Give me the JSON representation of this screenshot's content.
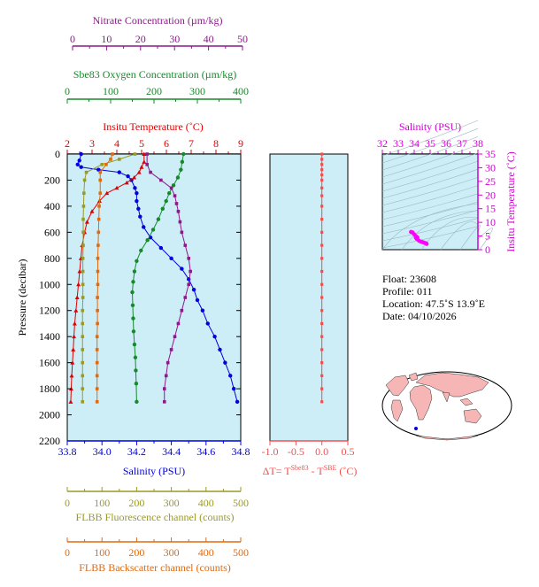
{
  "axes": {
    "nitrate": {
      "label": "Nitrate Concentration (µm/kg)",
      "color": "#8b1a89",
      "ticks": [
        "0",
        "10",
        "20",
        "30",
        "40",
        "50"
      ],
      "range": [
        0,
        50
      ]
    },
    "oxygen": {
      "label": "Sbe83 Oxygen Concentration (µm/kg)",
      "color": "#168a2a",
      "ticks": [
        "0",
        "100",
        "200",
        "300",
        "400"
      ],
      "range": [
        0,
        400
      ]
    },
    "temperature": {
      "label": "Insitu Temperature (˚C)",
      "color": "#e00000",
      "ticks": [
        "2",
        "3",
        "4",
        "5",
        "6",
        "7",
        "8",
        "9"
      ],
      "range": [
        2,
        9
      ]
    },
    "salinity": {
      "label": "Salinity (PSU)",
      "color": "#0000e0",
      "ticks": [
        "33.8",
        "34.0",
        "34.2",
        "34.4",
        "34.6",
        "34.8"
      ],
      "range": [
        33.8,
        34.8
      ]
    },
    "pressure": {
      "label": "Pressure (decibar)",
      "color": "#000000",
      "ticks": [
        "0",
        "200",
        "400",
        "600",
        "800",
        "1000",
        "1200",
        "1400",
        "1600",
        "1800",
        "2000",
        "2200"
      ],
      "range": [
        0,
        2200
      ]
    },
    "fluorescence": {
      "label": "FLBB Fluorescence channel (counts)",
      "color": "#9a9a28",
      "ticks": [
        "0",
        "100",
        "200",
        "300",
        "400",
        "500"
      ],
      "range": [
        0,
        500
      ]
    },
    "backscatter": {
      "label": "FLBB Backscatter channel (counts)",
      "color": "#e06a10",
      "ticks": [
        "0",
        "100",
        "200",
        "300",
        "400",
        "500"
      ],
      "range": [
        0,
        500
      ]
    },
    "delta_t": {
      "label_prefix": "ΔT= T",
      "sup1": "Sbe83",
      "label_mid": " - T",
      "sup2": "SBE",
      "label_suffix": " (˚C)",
      "color": "#f05050",
      "ticks": [
        "-1.0",
        "-0.5",
        "0.0",
        "0.5"
      ],
      "range": [
        -1.0,
        0.5
      ]
    },
    "ts_salinity": {
      "label": "Salinity (PSU)",
      "color": "#d000d0",
      "ticks": [
        "32",
        "33",
        "34",
        "35",
        "36",
        "37",
        "38"
      ],
      "range": [
        32,
        38
      ]
    },
    "ts_temperature": {
      "label": "Insitu Temperature (˚C)",
      "color": "#d000d0",
      "ticks": [
        "0",
        "5",
        "10",
        "15",
        "20",
        "25",
        "30",
        "35"
      ],
      "range": [
        0,
        35
      ]
    }
  },
  "info": {
    "float": "Float:  23608",
    "profile": "Profile:  011",
    "location": "Location:  47.5˚S  13.9˚E",
    "date": "Date:  04/10/2026"
  },
  "colors": {
    "panel_bg": "#cdeef7",
    "land": "#f6b6b6",
    "ocean": "#ffffff"
  },
  "chart_data": [
    {
      "type": "line",
      "series": [
        {
          "name": "Salinity (PSU)",
          "color": "#0000e0",
          "marker": "circle",
          "points": [
            [
              33.88,
              0
            ],
            [
              33.87,
              50
            ],
            [
              33.86,
              80
            ],
            [
              33.88,
              100
            ],
            [
              33.98,
              120
            ],
            [
              34.1,
              140
            ],
            [
              34.15,
              170
            ],
            [
              34.17,
              200
            ],
            [
              34.19,
              260
            ],
            [
              34.2,
              300
            ],
            [
              34.2,
              360
            ],
            [
              34.21,
              420
            ],
            [
              34.22,
              480
            ],
            [
              34.24,
              560
            ],
            [
              34.28,
              640
            ],
            [
              34.34,
              720
            ],
            [
              34.4,
              800
            ],
            [
              34.46,
              880
            ],
            [
              34.5,
              960
            ],
            [
              34.53,
              1040
            ],
            [
              34.55,
              1120
            ],
            [
              34.58,
              1200
            ],
            [
              34.61,
              1300
            ],
            [
              34.65,
              1400
            ],
            [
              34.68,
              1500
            ],
            [
              34.71,
              1600
            ],
            [
              34.74,
              1700
            ],
            [
              34.76,
              1800
            ],
            [
              34.78,
              1900
            ]
          ]
        },
        {
          "name": "Insitu Temperature (˚C)",
          "color": "#e00000",
          "marker": "triangle",
          "points": [
            [
              5.1,
              0
            ],
            [
              5.1,
              60
            ],
            [
              5.0,
              100
            ],
            [
              4.9,
              140
            ],
            [
              4.7,
              180
            ],
            [
              4.4,
              220
            ],
            [
              4.0,
              260
            ],
            [
              3.6,
              300
            ],
            [
              3.3,
              360
            ],
            [
              3.0,
              440
            ],
            [
              2.8,
              520
            ],
            [
              2.7,
              600
            ],
            [
              2.6,
              700
            ],
            [
              2.55,
              800
            ],
            [
              2.5,
              900
            ],
            [
              2.45,
              1000
            ],
            [
              2.4,
              1100
            ],
            [
              2.35,
              1200
            ],
            [
              2.3,
              1300
            ],
            [
              2.27,
              1400
            ],
            [
              2.24,
              1500
            ],
            [
              2.21,
              1600
            ],
            [
              2.18,
              1700
            ],
            [
              2.16,
              1800
            ],
            [
              2.14,
              1900
            ]
          ]
        },
        {
          "name": "Sbe83 Oxygen Concentration (µm/kg)",
          "color": "#168a2a",
          "marker": "circle",
          "points": [
            [
              268,
              0
            ],
            [
              265,
              60
            ],
            [
              262,
              120
            ],
            [
              255,
              180
            ],
            [
              245,
              240
            ],
            [
              235,
              300
            ],
            [
              228,
              360
            ],
            [
              220,
              420
            ],
            [
              210,
              500
            ],
            [
              198,
              580
            ],
            [
              185,
              660
            ],
            [
              170,
              740
            ],
            [
              160,
              820
            ],
            [
              155,
              900
            ],
            [
              152,
              980
            ],
            [
              150,
              1060
            ],
            [
              151,
              1160
            ],
            [
              152,
              1260
            ],
            [
              153,
              1360
            ],
            [
              155,
              1460
            ],
            [
              157,
              1560
            ],
            [
              158,
              1660
            ],
            [
              159,
              1760
            ],
            [
              160,
              1900
            ]
          ]
        },
        {
          "name": "Nitrate Concentration (µm/kg)",
          "color": "#8b1a89",
          "marker": "square",
          "points": [
            [
              23,
              0
            ],
            [
              23,
              80
            ],
            [
              24,
              140
            ],
            [
              27,
              200
            ],
            [
              30,
              260
            ],
            [
              31,
              320
            ],
            [
              31.5,
              380
            ],
            [
              32,
              440
            ],
            [
              32.5,
              520
            ],
            [
              33,
              600
            ],
            [
              34,
              700
            ],
            [
              35,
              800
            ],
            [
              35.5,
              900
            ],
            [
              35,
              1000
            ],
            [
              34,
              1100
            ],
            [
              33,
              1200
            ],
            [
              32,
              1300
            ],
            [
              31,
              1400
            ],
            [
              30,
              1500
            ],
            [
              29,
              1600
            ],
            [
              28.5,
              1700
            ],
            [
              28,
              1800
            ],
            [
              28,
              1900
            ]
          ]
        },
        {
          "name": "FLBB Fluorescence channel (counts)",
          "color": "#9a9a28",
          "marker": "square",
          "points": [
            [
              195,
              0
            ],
            [
              150,
              40
            ],
            [
              100,
              80
            ],
            [
              55,
              140
            ],
            [
              50,
              200
            ],
            [
              48,
              300
            ],
            [
              47,
              400
            ],
            [
              46,
              500
            ],
            [
              46,
              600
            ],
            [
              46,
              700
            ],
            [
              45,
              800
            ],
            [
              45,
              900
            ],
            [
              45,
              1000
            ],
            [
              45,
              1100
            ],
            [
              44,
              1200
            ],
            [
              44,
              1300
            ],
            [
              44,
              1400
            ],
            [
              44,
              1500
            ],
            [
              44,
              1600
            ],
            [
              44,
              1700
            ],
            [
              44,
              1800
            ],
            [
              44,
              1900
            ]
          ]
        },
        {
          "name": "FLBB Backscatter channel (counts)",
          "color": "#e06a10",
          "marker": "square",
          "points": [
            [
              130,
              0
            ],
            [
              125,
              40
            ],
            [
              112,
              80
            ],
            [
              95,
              140
            ],
            [
              95,
              200
            ],
            [
              95,
              300
            ],
            [
              92,
              400
            ],
            [
              91,
              500
            ],
            [
              90,
              600
            ],
            [
              89,
              700
            ],
            [
              88,
              800
            ],
            [
              88,
              900
            ],
            [
              88,
              1000
            ],
            [
              87,
              1100
            ],
            [
              87,
              1200
            ],
            [
              87,
              1300
            ],
            [
              86,
              1400
            ],
            [
              86,
              1500
            ],
            [
              86,
              1600
            ],
            [
              86,
              1700
            ],
            [
              86,
              1800
            ],
            [
              86,
              1900
            ]
          ]
        }
      ]
    },
    {
      "type": "line",
      "series": [
        {
          "name": "ΔT",
          "color": "#f05050",
          "marker": "square",
          "points": [
            [
              0.0,
              0
            ],
            [
              0.0,
              40
            ],
            [
              0.0,
              80
            ],
            [
              0.0,
              120
            ],
            [
              0.0,
              160
            ],
            [
              0.0,
              200
            ],
            [
              0.0,
              260
            ],
            [
              0.0,
              320
            ],
            [
              0.0,
              400
            ],
            [
              0.0,
              500
            ],
            [
              0.0,
              600
            ],
            [
              0.0,
              700
            ],
            [
              0.0,
              800
            ],
            [
              0.0,
              900
            ],
            [
              0.0,
              1000
            ],
            [
              0.0,
              1100
            ],
            [
              0.0,
              1200
            ],
            [
              0.0,
              1300
            ],
            [
              0.0,
              1400
            ],
            [
              0.0,
              1500
            ],
            [
              0.0,
              1600
            ],
            [
              0.0,
              1700
            ],
            [
              0.0,
              1800
            ],
            [
              0.0,
              1900
            ]
          ]
        }
      ]
    },
    {
      "type": "scatter",
      "series": [
        {
          "name": "T-S",
          "color": "#ff00ff",
          "points": [
            [
              33.8,
              6.5
            ],
            [
              33.9,
              6.3
            ],
            [
              34.0,
              5.6
            ],
            [
              34.1,
              4.5
            ],
            [
              34.15,
              4.0
            ],
            [
              34.2,
              3.8
            ],
            [
              34.3,
              3.3
            ],
            [
              34.4,
              3.0
            ],
            [
              34.5,
              2.8
            ],
            [
              34.6,
              2.6
            ],
            [
              34.7,
              2.4
            ],
            [
              34.75,
              2.3
            ],
            [
              34.78,
              2.1
            ],
            [
              34.2,
              4.5
            ],
            [
              34.1,
              5.0
            ]
          ]
        }
      ]
    }
  ]
}
